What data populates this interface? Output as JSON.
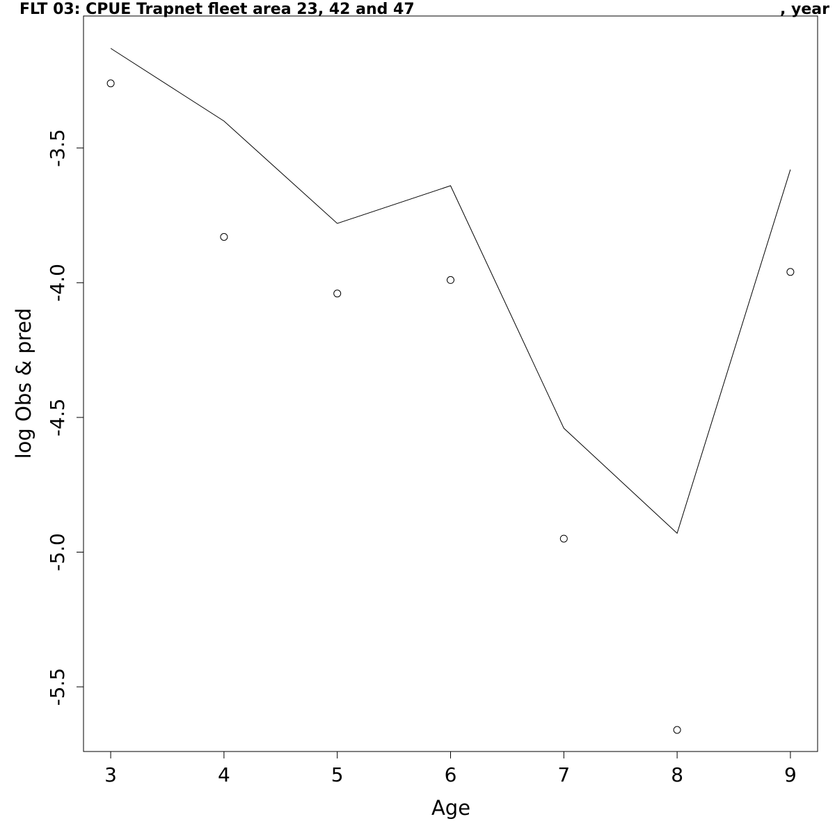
{
  "chart_data": {
    "type": "line",
    "title": "FLT 03: CPUE Trapnet fleet area 23, 42 and 47",
    "title_suffix": ", year",
    "xlabel": "Age",
    "ylabel": "log Obs & pred",
    "x": [
      3,
      4,
      5,
      6,
      7,
      8,
      9
    ],
    "xlim": [
      2.76,
      9.24
    ],
    "ylim": [
      -5.74,
      -3.01
    ],
    "xticks": [
      "3",
      "4",
      "5",
      "6",
      "7",
      "8",
      "9"
    ],
    "yticks": [
      "-3.5",
      "-4.0",
      "-4.5",
      "-5.0",
      "-5.5"
    ],
    "grid": false,
    "legend": "none",
    "series": [
      {
        "kind": "points",
        "marker": "open-circle",
        "values": [
          -3.26,
          -3.83,
          -4.04,
          -3.99,
          -4.95,
          -5.66,
          -3.96
        ]
      },
      {
        "kind": "line",
        "values": [
          -3.13,
          -3.4,
          -3.78,
          -3.64,
          -4.54,
          -4.93,
          -3.58
        ]
      }
    ],
    "colors": {
      "line": "#000000",
      "points": "#000000",
      "axes": "#000000"
    }
  }
}
